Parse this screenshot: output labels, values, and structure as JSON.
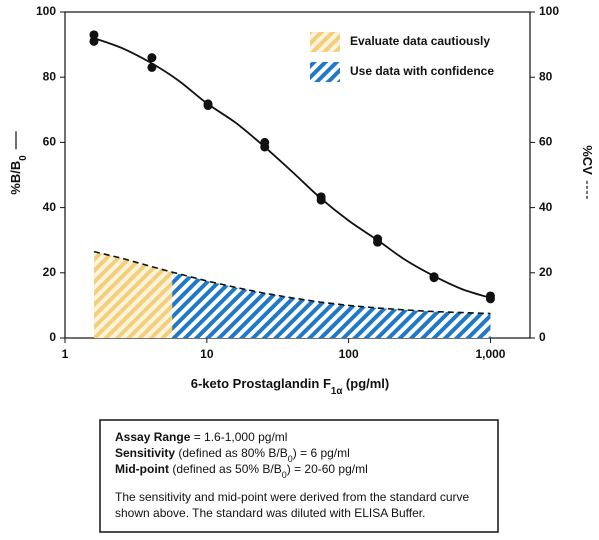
{
  "chart_data": {
    "type": "standard-curve",
    "x_label": [
      {
        "text": "6-keto Prostaglandin F"
      },
      {
        "text": "1α",
        "style": "sub"
      },
      {
        "text": " (pg/ml)"
      }
    ],
    "y_label": [
      {
        "text": "%B/B"
      },
      {
        "text": "0",
        "style": "sub"
      }
    ],
    "y2_label": [
      {
        "text": "%CV"
      }
    ],
    "log_x": true,
    "xlim": [
      1,
      1900
    ],
    "xticks": [
      1,
      10,
      100,
      {
        "value": 1000,
        "label": "1,000"
      }
    ],
    "ylim": [
      0,
      100
    ],
    "yticks": [
      0,
      20,
      40,
      60,
      80,
      100
    ],
    "y2lim": [
      0,
      100
    ],
    "y2ticks": [
      0,
      20,
      40,
      60,
      80,
      100
    ],
    "points": {
      "color": "#111111",
      "x": [
        1.6,
        1.6,
        4.1,
        4.1,
        10.2,
        10.2,
        25.6,
        25.6,
        64,
        64,
        160,
        160,
        400,
        400,
        1000,
        1000
      ],
      "values": [
        93,
        91,
        86,
        83,
        71.8,
        71.3,
        60,
        58.6,
        43.3,
        42.3,
        30.4,
        29.4,
        18.8,
        18.5,
        12.9,
        12
      ]
    },
    "fit_curve": {
      "color": "#111111",
      "x": [
        1.6,
        2.5,
        4,
        6.3,
        10,
        16,
        25,
        40,
        63,
        100,
        160,
        250,
        400,
        630,
        1000
      ],
      "values": [
        92,
        89,
        84.5,
        79,
        72,
        66,
        59,
        51,
        43,
        36,
        30,
        24,
        19,
        15,
        12.3
      ]
    },
    "cv_curve": {
      "axis": "y2",
      "color": "#111111",
      "x": [
        1.6,
        2.5,
        4,
        5.7,
        10,
        16,
        25,
        40,
        63,
        100,
        160,
        250,
        400,
        630,
        1000
      ],
      "values": [
        26.5,
        24.5,
        22,
        20.2,
        17.5,
        15.5,
        13.8,
        12.3,
        11,
        10,
        9.2,
        8.6,
        8.1,
        7.8,
        7.5
      ]
    },
    "regions": [
      {
        "label": "Evaluate data cautiously",
        "color": "#f2cf7a",
        "x": [
          1.6,
          5.7
        ]
      },
      {
        "label": "Use data with confidence",
        "color": "#1f78c8",
        "x": [
          5.7,
          1000
        ]
      }
    ]
  },
  "info_box": {
    "lines": [
      [
        {
          "text": "Assay Range",
          "style": "bold"
        },
        {
          "text": " = 1.6-1,000 pg/ml"
        }
      ],
      [
        {
          "text": "Sensitivity",
          "style": "bold"
        },
        {
          "text": " (defined as 80% B/B"
        },
        {
          "text": "0",
          "style": "sub"
        },
        {
          "text": ") = 6 pg/ml"
        }
      ],
      [
        {
          "text": "Mid-point",
          "style": "bold"
        },
        {
          "text": " (defined as 50% B/B"
        },
        {
          "text": "0",
          "style": "sub"
        },
        {
          "text": ") = 20-60 pg/ml"
        }
      ],
      [
        {
          "text": "The sensitivity and mid-point were derived from the standard curve"
        }
      ],
      [
        {
          "text": "shown above. The standard was diluted with ELISA Buffer."
        }
      ]
    ]
  }
}
